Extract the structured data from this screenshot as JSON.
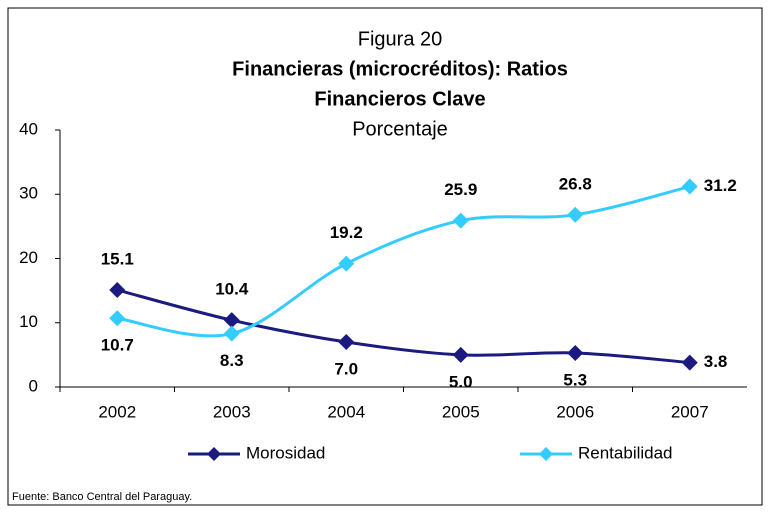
{
  "chart_data": {
    "type": "line",
    "supertitle": "Figura 20",
    "title": [
      "Financieras (microcréditos): Ratios",
      "Financieros Clave"
    ],
    "subtitle": "Porcentaje",
    "source": "Fuente: Banco Central del Paraguay.",
    "categories": [
      "2002",
      "2003",
      "2004",
      "2005",
      "2006",
      "2007"
    ],
    "series": [
      {
        "name": "Morosidad",
        "color": "#1a1a80",
        "values": [
          15.1,
          10.4,
          7,
          5,
          5.3,
          3.8
        ],
        "value_labels": [
          "15.1",
          "10.4",
          "7.0",
          "5.0",
          "5.3",
          "3.8"
        ]
      },
      {
        "name": "Rentabilidad",
        "color": "#33ccff",
        "values": [
          10.7,
          8.3,
          19.2,
          25.9,
          26.8,
          31.2
        ]
      }
    ],
    "ylim": [
      0,
      40
    ],
    "yticks": [
      0,
      10,
      20,
      30,
      40
    ],
    "grid": false,
    "smooth": true
  }
}
